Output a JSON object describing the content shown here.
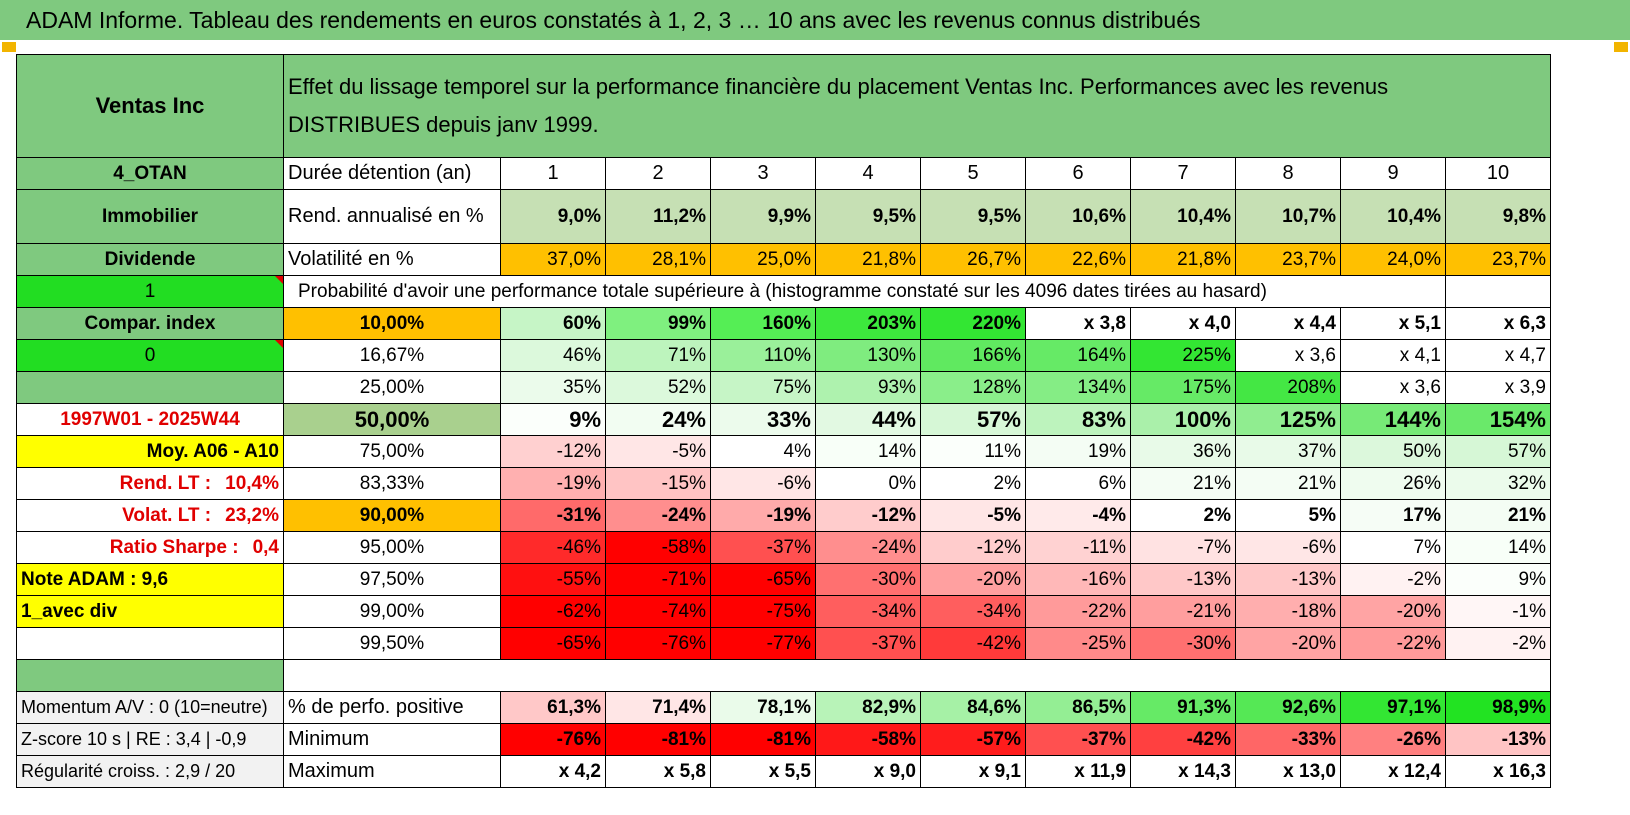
{
  "title": "ADAM Informe. Tableau des rendements en euros constatés à 1, 2, 3 … 10 ans avec les revenus connus distribués",
  "header": {
    "asset_name": "Ventas Inc",
    "description": "Effet du lissage temporel sur la performance financière du placement Ventas Inc. Performances avec les revenus DISTRIBUES depuis janv 1999."
  },
  "left": {
    "code": "4_OTAN",
    "sector": "Immobilier",
    "type": "Dividende",
    "flag1": "1",
    "compar": "Compar. index",
    "flag2": "0",
    "blank": "",
    "period": "1997W01 - 2025W44",
    "moy": "Moy. A06 - A10",
    "rend_label": "Rend. LT :",
    "rend_value": "10,4%",
    "volat_label": "Volat. LT :",
    "volat_value": "23,2%",
    "sharpe_label": "Ratio Sharpe :",
    "sharpe_value": "0,4",
    "note": "Note ADAM : 9,6",
    "variant": "1_avec div",
    "momentum": "Momentum A/V : 0 (10=neutre)",
    "zscore": "Z-score 10 s | RE : 3,4 | -0,9",
    "regularite": "Régularité croiss. : 2,9 / 20"
  },
  "labels": {
    "duree": "Durée détention (an)",
    "rend": "Rend. annualisé en %",
    "volat": "Volatilité en %",
    "proba": "Probabilité d'avoir une performance totale supérieure à (histogramme constaté sur les 4096 dates tirées au hasard)",
    "positive": "% de perfo. positive",
    "minimum": "Minimum",
    "maximum": "Maximum"
  },
  "years": [
    "1",
    "2",
    "3",
    "4",
    "5",
    "6",
    "7",
    "8",
    "9",
    "10"
  ],
  "rendement": [
    "9,0%",
    "11,2%",
    "9,9%",
    "9,5%",
    "9,5%",
    "10,6%",
    "10,4%",
    "10,7%",
    "10,4%",
    "9,8%"
  ],
  "volatilite": [
    "37,0%",
    "28,1%",
    "25,0%",
    "21,8%",
    "26,7%",
    "22,6%",
    "21,8%",
    "23,7%",
    "24,0%",
    "23,7%"
  ],
  "proba_rows": [
    {
      "level": "10,00%",
      "values": [
        "60%",
        "99%",
        "160%",
        "203%",
        "220%",
        "x 3,8",
        "x 4,0",
        "x 4,4",
        "x 5,1",
        "x 6,3"
      ],
      "colors": [
        "#c6f5c6",
        "#7ff07f",
        "#55ee55",
        "#3de83d",
        "#33e633",
        "#ffffff",
        "#ffffff",
        "#ffffff",
        "#ffffff",
        "#ffffff"
      ]
    },
    {
      "level": "16,67%",
      "values": [
        "46%",
        "71%",
        "110%",
        "130%",
        "166%",
        "164%",
        "225%",
        "x 3,6",
        "x 4,1",
        "x 4,7"
      ],
      "colors": [
        "#dcf9dc",
        "#bdf4bd",
        "#9af09a",
        "#7fec7f",
        "#60e960",
        "#66ea66",
        "#33e633",
        "#ffffff",
        "#ffffff",
        "#ffffff"
      ]
    },
    {
      "level": "25,00%",
      "values": [
        "35%",
        "52%",
        "75%",
        "93%",
        "128%",
        "134%",
        "175%",
        "208%",
        "x 3,6",
        "x 3,9"
      ],
      "colors": [
        "#ebfbeb",
        "#dcf9dc",
        "#c6f5c6",
        "#aef2ae",
        "#8aee8a",
        "#85ed85",
        "#66ea66",
        "#44e744",
        "#ffffff",
        "#ffffff"
      ]
    },
    {
      "level": "50,00%",
      "values": [
        "9%",
        "24%",
        "33%",
        "44%",
        "57%",
        "83%",
        "100%",
        "125%",
        "144%",
        "154%"
      ],
      "colors": [
        "#fbfffb",
        "#f2fdf2",
        "#ecfbec",
        "#e2f9e2",
        "#d6f7d6",
        "#bdf3bd",
        "#aaf0aa",
        "#90ed90",
        "#77ea77",
        "#6ae96a"
      ]
    },
    {
      "level": "75,00%",
      "values": [
        "-12%",
        "-5%",
        "4%",
        "14%",
        "11%",
        "19%",
        "36%",
        "37%",
        "50%",
        "57%"
      ],
      "colors": [
        "#ffd0d0",
        "#ffe6e6",
        "#ffffff",
        "#f8fff8",
        "#fbfffb",
        "#f4fdf4",
        "#e8fae8",
        "#e8fae8",
        "#dcf8dc",
        "#d6f7d6"
      ]
    },
    {
      "level": "83,33%",
      "values": [
        "-19%",
        "-15%",
        "-6%",
        "0%",
        "2%",
        "6%",
        "21%",
        "21%",
        "26%",
        "32%"
      ],
      "colors": [
        "#ffb0b0",
        "#ffc4c4",
        "#ffe6e6",
        "#ffffff",
        "#ffffff",
        "#ffffff",
        "#f4fdf4",
        "#f4fdf4",
        "#effcef",
        "#ebfbeb"
      ]
    },
    {
      "level": "90,00%",
      "values": [
        "-31%",
        "-24%",
        "-19%",
        "-12%",
        "-5%",
        "-4%",
        "2%",
        "5%",
        "17%",
        "21%"
      ],
      "colors": [
        "#ff6a6a",
        "#ff8e8e",
        "#ffaaaa",
        "#ffcccc",
        "#ffe6e6",
        "#ffeaea",
        "#ffffff",
        "#ffffff",
        "#f6fdf6",
        "#f4fdf4"
      ]
    },
    {
      "level": "95,00%",
      "values": [
        "-46%",
        "-58%",
        "-37%",
        "-24%",
        "-12%",
        "-11%",
        "-7%",
        "-6%",
        "7%",
        "14%"
      ],
      "colors": [
        "#ff2a2a",
        "#ff0000",
        "#ff5050",
        "#ff8e8e",
        "#ffcccc",
        "#ffd2d2",
        "#ffe2e2",
        "#ffe6e6",
        "#ffffff",
        "#f8fff8"
      ]
    },
    {
      "level": "97,50%",
      "values": [
        "-55%",
        "-71%",
        "-65%",
        "-30%",
        "-20%",
        "-16%",
        "-13%",
        "-13%",
        "-2%",
        "9%"
      ],
      "colors": [
        "#ff1010",
        "#ff0000",
        "#ff0000",
        "#ff7070",
        "#ffa0a0",
        "#ffb8b8",
        "#ffc8c8",
        "#ffc8c8",
        "#fff2f2",
        "#fbfffb"
      ]
    },
    {
      "level": "99,00%",
      "values": [
        "-62%",
        "-74%",
        "-75%",
        "-34%",
        "-34%",
        "-22%",
        "-21%",
        "-18%",
        "-20%",
        "-1%"
      ],
      "colors": [
        "#ff0000",
        "#ff0000",
        "#ff0000",
        "#ff5e5e",
        "#ff5e5e",
        "#ff9a9a",
        "#ff9e9e",
        "#ffaeae",
        "#ffa4a4",
        "#fff6f6"
      ]
    },
    {
      "level": "99,50%",
      "values": [
        "-65%",
        "-76%",
        "-77%",
        "-37%",
        "-42%",
        "-25%",
        "-30%",
        "-20%",
        "-22%",
        "-2%"
      ],
      "colors": [
        "#ff0000",
        "#ff0000",
        "#ff0000",
        "#ff5050",
        "#ff3a3a",
        "#ff8a8a",
        "#ff7070",
        "#ffa4a4",
        "#ff9a9a",
        "#fff2f2"
      ]
    }
  ],
  "positive": {
    "values": [
      "61,3%",
      "71,4%",
      "78,1%",
      "82,9%",
      "84,6%",
      "86,5%",
      "91,3%",
      "92,6%",
      "97,1%",
      "98,9%"
    ],
    "colors": [
      "#ffc8c8",
      "#ffe6e6",
      "#eafbea",
      "#b8f3b8",
      "#a6f1a6",
      "#94ee94",
      "#66ea66",
      "#55e855",
      "#33e633",
      "#22e322"
    ]
  },
  "minimum": {
    "values": [
      "-76%",
      "-81%",
      "-81%",
      "-58%",
      "-57%",
      "-37%",
      "-42%",
      "-33%",
      "-26%",
      "-13%"
    ],
    "colors": [
      "#ff0000",
      "#ff0000",
      "#ff0000",
      "#ff1818",
      "#ff1c1c",
      "#ff5050",
      "#ff4040",
      "#ff6666",
      "#ff8080",
      "#ffc4c4"
    ]
  },
  "maximum": {
    "values": [
      "x 4,2",
      "x 5,8",
      "x 5,5",
      "x 9,0",
      "x 9,1",
      "x 11,9",
      "x 14,3",
      "x 13,0",
      "x 12,4",
      "x 16,3"
    ]
  },
  "colors": {
    "header_green": "#7fc97f",
    "lime": "#22dd22",
    "orange": "#ffc000",
    "yellow": "#ffff00",
    "red_text": "#e00000"
  }
}
